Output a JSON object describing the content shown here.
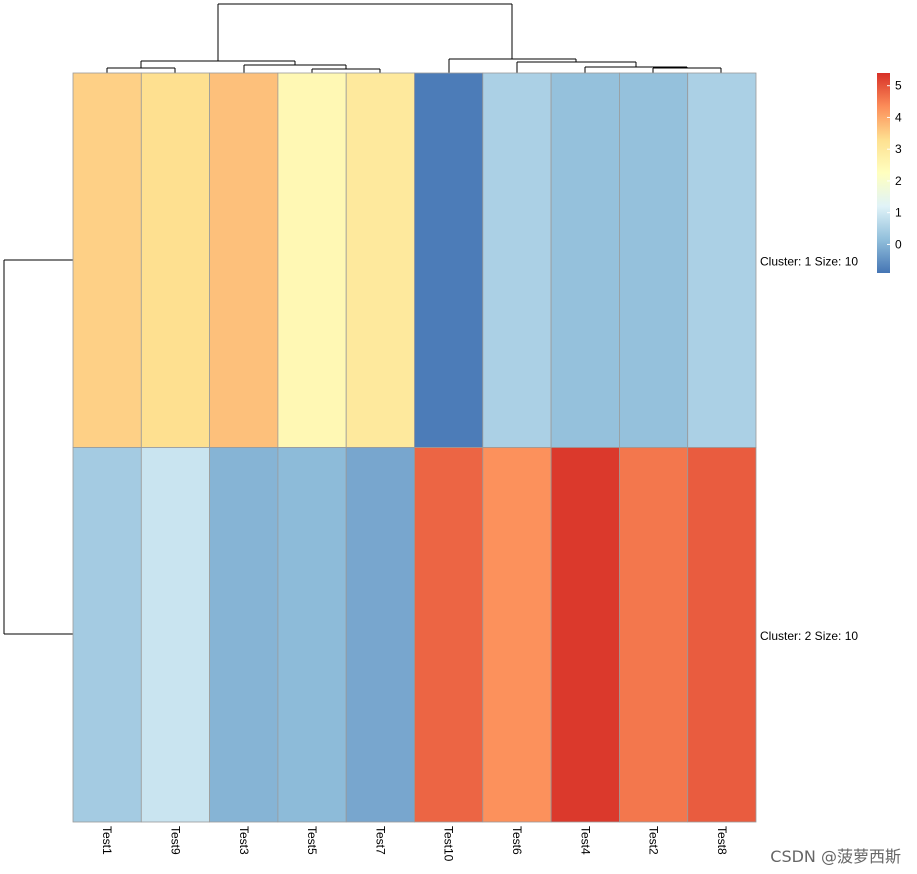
{
  "chart_data": {
    "type": "heatmap",
    "columns": [
      "Test1",
      "Test9",
      "Test3",
      "Test5",
      "Test7",
      "Test10",
      "Test6",
      "Test4",
      "Test2",
      "Test8"
    ],
    "row_clusters": [
      {
        "label": "Cluster: 1 Size: 10",
        "values": [
          3.5,
          3.3,
          3.7,
          2.5,
          3.0,
          -0.8,
          0.5,
          0.2,
          0.2,
          0.5
        ]
      },
      {
        "label": "Cluster: 2 Size: 10",
        "values": [
          0.4,
          0.9,
          0.0,
          0.1,
          -0.2,
          4.8,
          4.3,
          5.3,
          4.6,
          4.9
        ]
      }
    ],
    "colorbar": {
      "ticks": [
        0,
        1,
        2,
        3,
        4,
        5
      ],
      "min": -0.9,
      "max": 5.4,
      "colors": [
        "#4575b4",
        "#91bfdb",
        "#e0f3f8",
        "#ffffbf",
        "#fee090",
        "#fc8d59",
        "#d73027"
      ]
    },
    "column_dendrogram": "((Test1,Test9),(Test3,(Test5,Test7))),(Test10,(Test6,(Test4,(Test2,Test8))))",
    "row_dendrogram": "(Cluster 1, Cluster 2)"
  },
  "watermark": "CSDN @菠萝西斯"
}
